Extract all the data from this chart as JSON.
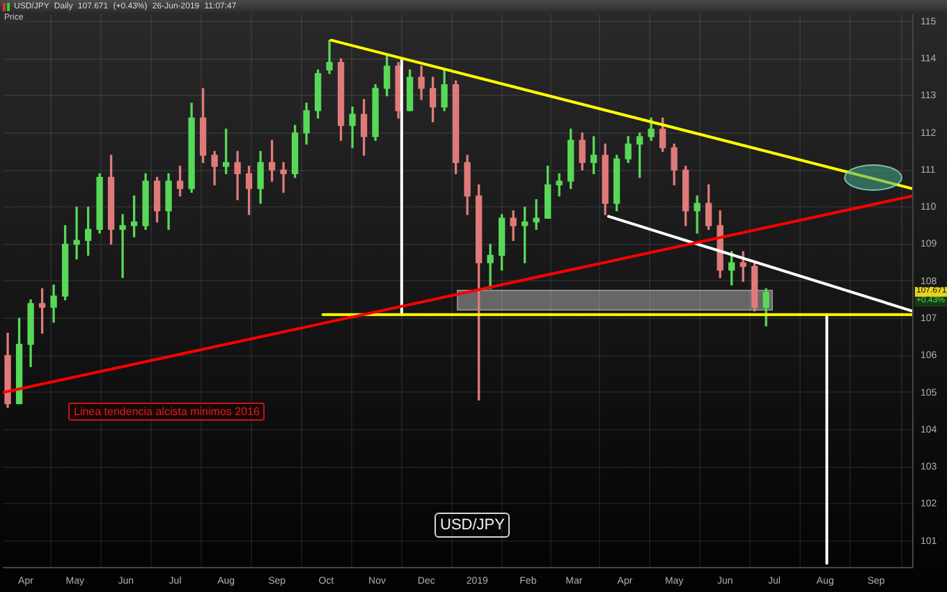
{
  "chart_data": {
    "type": "candlestick",
    "title": "USD/JPY Daily 107.671 (+0.43%) 26-Jun-2019 11:07:47",
    "ylabel": "Price",
    "x": [
      "2018-03-21",
      "2018-03-28",
      "2018-04-04",
      "2018-04-11",
      "2018-04-18",
      "2018-04-25",
      "2018-05-02",
      "2018-05-09",
      "2018-05-16",
      "2018-05-23",
      "2018-05-30",
      "2018-06-06",
      "2018-06-13",
      "2018-06-20",
      "2018-06-27",
      "2018-07-04",
      "2018-07-11",
      "2018-07-18",
      "2018-07-25",
      "2018-08-01",
      "2018-08-08",
      "2018-08-15",
      "2018-08-22",
      "2018-08-29",
      "2018-09-05",
      "2018-09-12",
      "2018-09-19",
      "2018-09-26",
      "2018-10-03",
      "2018-10-10",
      "2018-10-17",
      "2018-10-24",
      "2018-10-31",
      "2018-11-07",
      "2018-11-14",
      "2018-11-21",
      "2018-11-28",
      "2018-12-05",
      "2018-12-12",
      "2018-12-19",
      "2018-12-26",
      "2019-01-02",
      "2019-01-09",
      "2019-01-16",
      "2019-01-23",
      "2019-01-30",
      "2019-02-06",
      "2019-02-13",
      "2019-02-20",
      "2019-02-27",
      "2019-03-06",
      "2019-03-13",
      "2019-03-20",
      "2019-03-27",
      "2019-04-03",
      "2019-04-10",
      "2019-04-17",
      "2019-04-24",
      "2019-05-01",
      "2019-05-08",
      "2019-05-15",
      "2019-05-22",
      "2019-05-29",
      "2019-06-05",
      "2019-06-12",
      "2019-06-19",
      "2019-06-26"
    ],
    "ohlc": [
      [
        106.0,
        106.6,
        104.6,
        104.7
      ],
      [
        104.7,
        107.0,
        104.7,
        106.3
      ],
      [
        106.3,
        107.5,
        105.7,
        107.4
      ],
      [
        107.4,
        107.8,
        106.6,
        107.3
      ],
      [
        107.3,
        107.9,
        106.9,
        107.6
      ],
      [
        107.6,
        109.5,
        107.5,
        109.0
      ],
      [
        109.0,
        110.0,
        108.6,
        109.1
      ],
      [
        109.1,
        110.0,
        108.7,
        109.4
      ],
      [
        109.4,
        110.9,
        109.3,
        110.8
      ],
      [
        110.8,
        111.4,
        109.0,
        109.4
      ],
      [
        109.4,
        109.8,
        108.1,
        109.5
      ],
      [
        109.5,
        110.3,
        109.2,
        109.6
      ],
      [
        109.5,
        110.9,
        109.4,
        110.7
      ],
      [
        110.7,
        110.8,
        109.6,
        109.9
      ],
      [
        109.9,
        110.9,
        109.4,
        110.7
      ],
      [
        110.7,
        111.1,
        110.3,
        110.5
      ],
      [
        110.5,
        112.8,
        110.4,
        112.4
      ],
      [
        112.4,
        113.2,
        111.2,
        111.4
      ],
      [
        111.4,
        111.5,
        110.6,
        111.1
      ],
      [
        111.1,
        112.1,
        110.9,
        111.2
      ],
      [
        111.2,
        111.5,
        110.2,
        110.9
      ],
      [
        110.9,
        111.1,
        109.8,
        110.5
      ],
      [
        110.5,
        111.5,
        110.1,
        111.2
      ],
      [
        111.2,
        111.8,
        110.7,
        111.0
      ],
      [
        111.0,
        111.2,
        110.4,
        110.9
      ],
      [
        110.9,
        112.2,
        110.8,
        112.0
      ],
      [
        112.0,
        112.8,
        111.7,
        112.6
      ],
      [
        112.6,
        113.7,
        112.4,
        113.6
      ],
      [
        113.7,
        114.5,
        113.6,
        113.9
      ],
      [
        113.9,
        114.0,
        111.8,
        112.2
      ],
      [
        112.2,
        112.7,
        111.6,
        112.5
      ],
      [
        112.5,
        112.9,
        111.4,
        111.9
      ],
      [
        111.9,
        113.3,
        111.8,
        113.2
      ],
      [
        113.2,
        114.1,
        113.0,
        113.8
      ],
      [
        113.8,
        113.9,
        112.4,
        112.6
      ],
      [
        112.6,
        113.7,
        112.6,
        113.5
      ],
      [
        113.5,
        113.8,
        112.9,
        113.2
      ],
      [
        113.2,
        113.5,
        112.3,
        112.7
      ],
      [
        112.7,
        113.7,
        112.6,
        113.3
      ],
      [
        113.3,
        113.4,
        110.9,
        111.2
      ],
      [
        111.2,
        111.4,
        109.8,
        110.3
      ],
      [
        110.3,
        110.6,
        104.8,
        108.5
      ],
      [
        108.5,
        109.0,
        107.8,
        108.7
      ],
      [
        108.7,
        109.8,
        108.3,
        109.7
      ],
      [
        109.7,
        109.9,
        109.1,
        109.5
      ],
      [
        109.5,
        110.0,
        108.5,
        109.6
      ],
      [
        109.6,
        110.2,
        109.4,
        109.7
      ],
      [
        109.7,
        111.1,
        109.7,
        110.6
      ],
      [
        110.6,
        110.9,
        110.3,
        110.7
      ],
      [
        110.7,
        112.1,
        110.5,
        111.8
      ],
      [
        111.8,
        112.0,
        111.0,
        111.2
      ],
      [
        111.2,
        111.9,
        110.9,
        111.4
      ],
      [
        111.4,
        111.7,
        109.8,
        110.1
      ],
      [
        110.1,
        111.4,
        109.9,
        111.3
      ],
      [
        111.3,
        111.9,
        111.2,
        111.7
      ],
      [
        111.7,
        112.0,
        110.8,
        111.9
      ],
      [
        111.9,
        112.4,
        111.8,
        112.1
      ],
      [
        112.1,
        112.4,
        111.5,
        111.6
      ],
      [
        111.6,
        111.7,
        110.6,
        111.0
      ],
      [
        111.0,
        111.1,
        109.5,
        109.9
      ],
      [
        109.9,
        110.3,
        109.3,
        110.1
      ],
      [
        110.1,
        110.6,
        109.4,
        109.5
      ],
      [
        109.5,
        109.9,
        108.1,
        108.3
      ],
      [
        108.3,
        108.8,
        107.9,
        108.5
      ],
      [
        108.5,
        108.8,
        108.0,
        108.4
      ],
      [
        108.4,
        108.5,
        107.2,
        107.3
      ],
      [
        107.3,
        107.8,
        106.8,
        107.7
      ]
    ],
    "colors": [
      "#e07a7a",
      "#58d858",
      "#58d858",
      "#e07a7a",
      "#58d858",
      "#58d858",
      "#58d858",
      "#58d858",
      "#58d858",
      "#e07a7a",
      "#58d858",
      "#58d858",
      "#58d858",
      "#e07a7a",
      "#58d858",
      "#e07a7a",
      "#58d858",
      "#e07a7a",
      "#e07a7a",
      "#58d858",
      "#e07a7a",
      "#e07a7a",
      "#58d858",
      "#e07a7a",
      "#e07a7a",
      "#58d858",
      "#58d858",
      "#58d858",
      "#58d858",
      "#e07a7a",
      "#58d858",
      "#e07a7a",
      "#58d858",
      "#58d858",
      "#e07a7a",
      "#58d858",
      "#e07a7a",
      "#e07a7a",
      "#58d858",
      "#e07a7a",
      "#e07a7a",
      "#e07a7a",
      "#58d858",
      "#58d858",
      "#e07a7a",
      "#58d858",
      "#58d858",
      "#58d858",
      "#58d858",
      "#58d858",
      "#e07a7a",
      "#58d858",
      "#e07a7a",
      "#58d858",
      "#58d858",
      "#58d858",
      "#58d858",
      "#e07a7a",
      "#e07a7a",
      "#e07a7a",
      "#58d858",
      "#e07a7a",
      "#e07a7a",
      "#58d858",
      "#e07a7a",
      "#e07a7a",
      "#58d858"
    ],
    "series": [
      {
        "type": "line",
        "x": [
          "2018-03-18",
          "2019-09-23"
        ],
        "values": [
          105.0,
          110.3
        ],
        "color": "#ff0000"
      },
      {
        "type": "line",
        "x": [
          "2018-10-04",
          "2019-09-23"
        ],
        "values": [
          114.5,
          110.5
        ],
        "color": "#ffff00"
      },
      {
        "type": "line",
        "x": [
          "2018-09-29",
          "2019-09-23"
        ],
        "values": [
          107.1,
          107.1
        ],
        "color": "#ffff00"
      },
      {
        "type": "line",
        "x": [
          "2019-03-22",
          "2019-09-23"
        ],
        "values": [
          109.75,
          107.2
        ],
        "color": "#ffffff"
      },
      {
        "type": "line",
        "x": [
          "2018-11-16",
          "2018-11-16"
        ],
        "values": [
          114.0,
          107.1
        ],
        "color": "#ffffff"
      },
      {
        "type": "line",
        "x": [
          "2019-08-02",
          "2019-08-02"
        ],
        "values": [
          107.1,
          100.4
        ],
        "color": "#ffffff"
      }
    ],
    "xlim": [
      "2018-03-18",
      "2019-09-23"
    ],
    "xticks": [
      {
        "value": "2018-04",
        "label": "Apr"
      },
      {
        "value": "2018-05",
        "label": "May"
      },
      {
        "value": "2018-06",
        "label": "Jun"
      },
      {
        "value": "2018-07",
        "label": "Jul"
      },
      {
        "value": "2018-08",
        "label": "Aug"
      },
      {
        "value": "2018-09",
        "label": "Sep"
      },
      {
        "value": "2018-10",
        "label": "Oct"
      },
      {
        "value": "2018-11",
        "label": "Nov"
      },
      {
        "value": "2018-12",
        "label": "Dec"
      },
      {
        "value": "2019-01",
        "label": "2019"
      },
      {
        "value": "2019-02",
        "label": "Feb"
      },
      {
        "value": "2019-03",
        "label": "Mar"
      },
      {
        "value": "2019-04",
        "label": "Apr"
      },
      {
        "value": "2019-05",
        "label": "May"
      },
      {
        "value": "2019-06",
        "label": "Jun"
      },
      {
        "value": "2019-07",
        "label": "Jul"
      },
      {
        "value": "2019-08",
        "label": "Aug"
      },
      {
        "value": "2019-09",
        "label": "Sep"
      }
    ],
    "ylim": [
      100.3,
      115.2
    ],
    "yticks": [
      101,
      102,
      103,
      104,
      105,
      106,
      107,
      108,
      109,
      110,
      111,
      112,
      113,
      114,
      115
    ],
    "grid": true,
    "annotations": [
      "Linea tendencia alcista minimos 2016",
      "USD/JPY",
      "107.671",
      "+0.43%"
    ]
  }
}
